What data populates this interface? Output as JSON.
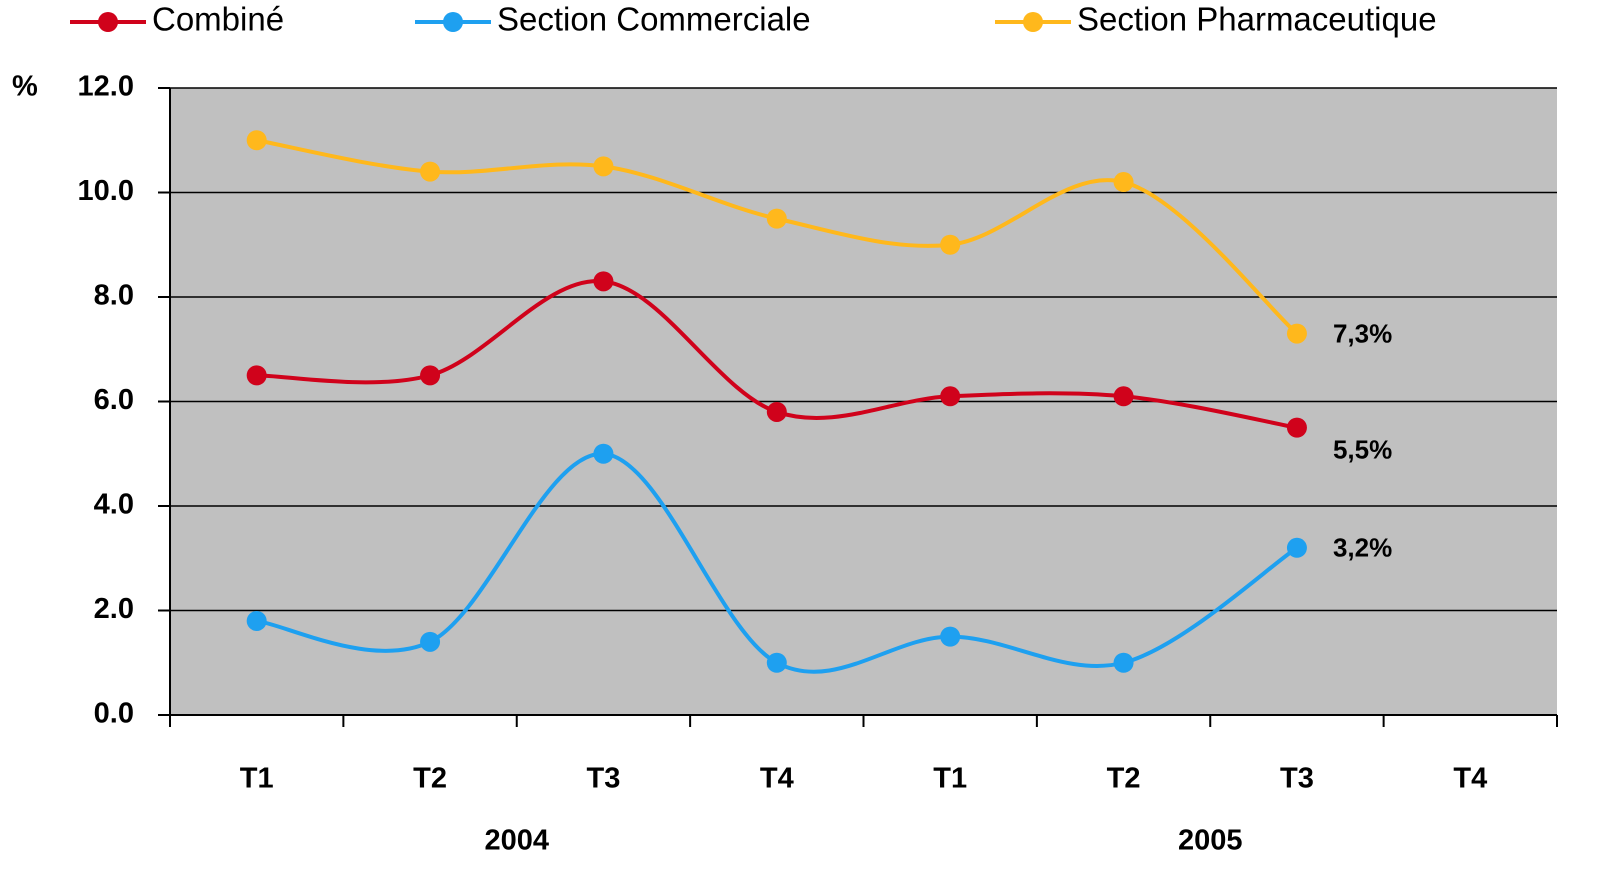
{
  "chart_data": {
    "type": "line",
    "ylabel": "%",
    "categories": [
      "T1",
      "T2",
      "T3",
      "T4",
      "T1",
      "T2",
      "T3",
      "T4"
    ],
    "x_groups": [
      "2004",
      "2005"
    ],
    "series": [
      {
        "name": "Combiné",
        "color": "#d0021b",
        "values": [
          6.5,
          6.5,
          8.3,
          5.8,
          6.1,
          6.1,
          5.5,
          null
        ],
        "value_labels": [
          null,
          null,
          null,
          null,
          null,
          null,
          "5,5%",
          null
        ]
      },
      {
        "name": "Section Commerciale",
        "color": "#1ea0f0",
        "values": [
          1.8,
          1.4,
          5.0,
          1.0,
          1.5,
          1.0,
          3.2,
          null
        ],
        "value_labels": [
          null,
          null,
          null,
          null,
          null,
          null,
          "3,2%",
          null
        ]
      },
      {
        "name": "Section Pharmaceutique",
        "color": "#ffb81c",
        "values": [
          11.0,
          10.4,
          10.5,
          9.5,
          9.0,
          10.2,
          7.3,
          null
        ],
        "value_labels": [
          null,
          null,
          null,
          null,
          null,
          null,
          "7,3%",
          null
        ]
      }
    ],
    "ylim": [
      0,
      12
    ],
    "yticks": [
      {
        "value": 0,
        "label": "0.0"
      },
      {
        "value": 2,
        "label": "2.0"
      },
      {
        "value": 4,
        "label": "4.0"
      },
      {
        "value": 6,
        "label": "6.0"
      },
      {
        "value": 8,
        "label": "8.0"
      },
      {
        "value": 10,
        "label": "10.0"
      },
      {
        "value": 12,
        "label": "12.0"
      }
    ],
    "grid": true,
    "smooth": true,
    "legend": "top"
  }
}
